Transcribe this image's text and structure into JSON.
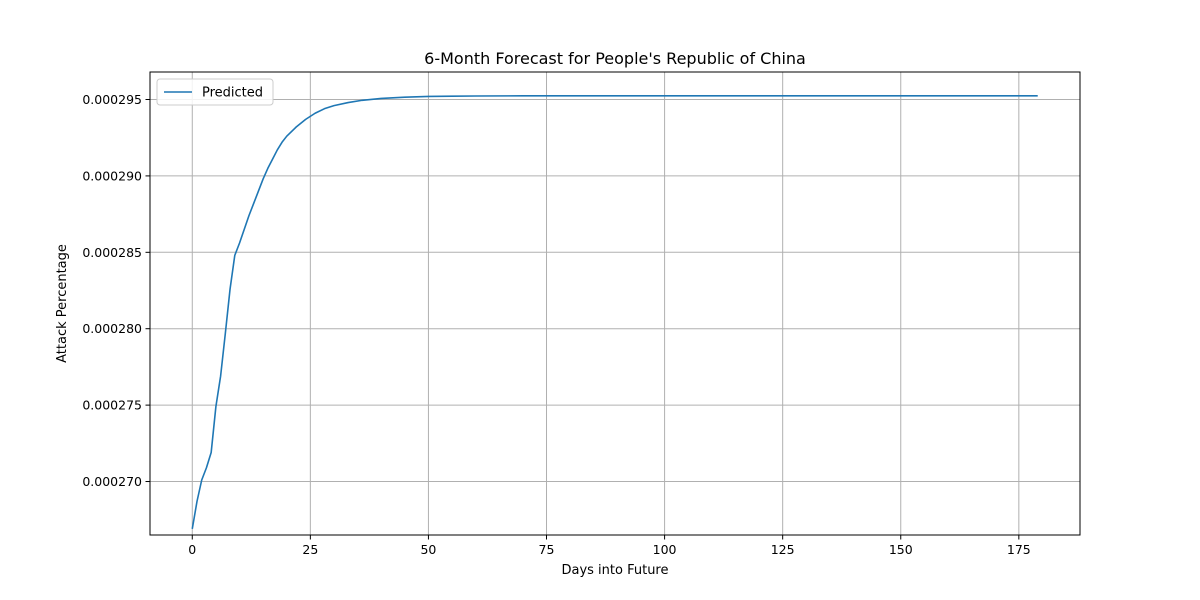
{
  "chart_data": {
    "type": "line",
    "title": "6-Month Forecast for People's Republic of China",
    "xlabel": "Days into Future",
    "ylabel": "Attack Percentage",
    "xlim": [
      -8.95,
      187.95
    ],
    "ylim": [
      0.0002665,
      0.0002968
    ],
    "xticks": [
      0,
      25,
      50,
      75,
      100,
      125,
      150,
      175
    ],
    "xtick_labels": [
      "0",
      "25",
      "50",
      "75",
      "100",
      "125",
      "150",
      "175"
    ],
    "yticks": [
      0.00027,
      0.000275,
      0.00028,
      0.000285,
      0.00029,
      0.000295
    ],
    "ytick_labels": [
      "0.000270",
      "0.000275",
      "0.000280",
      "0.000285",
      "0.000290",
      "0.000295"
    ],
    "grid": true,
    "legend_position": "top-left",
    "series": [
      {
        "name": "Predicted",
        "color": "#1f77b4",
        "x": [
          0,
          1,
          2,
          3,
          4,
          5,
          6,
          7,
          8,
          9,
          10,
          11,
          12,
          13,
          14,
          15,
          16,
          17,
          18,
          19,
          20,
          22,
          24,
          26,
          28,
          30,
          33,
          36,
          40,
          45,
          50,
          55,
          60,
          70,
          80,
          100,
          120,
          140,
          160,
          179
        ],
        "y": [
          0.0002669,
          0.0002687,
          0.0002701,
          0.0002709,
          0.0002719,
          0.0002749,
          0.0002769,
          0.0002797,
          0.0002826,
          0.0002848,
          0.0002856,
          0.0002865,
          0.0002874,
          0.0002882,
          0.000289,
          0.0002898,
          0.0002905,
          0.0002911,
          0.0002917,
          0.0002922,
          0.0002926,
          0.0002932,
          0.0002937,
          0.0002941,
          0.0002944,
          0.0002946,
          0.0002948,
          0.00029495,
          0.00029507,
          0.00029515,
          0.0002952,
          0.00029522,
          0.00029523,
          0.00029524,
          0.00029524,
          0.00029524,
          0.00029524,
          0.00029524,
          0.00029524,
          0.00029524
        ]
      }
    ]
  }
}
